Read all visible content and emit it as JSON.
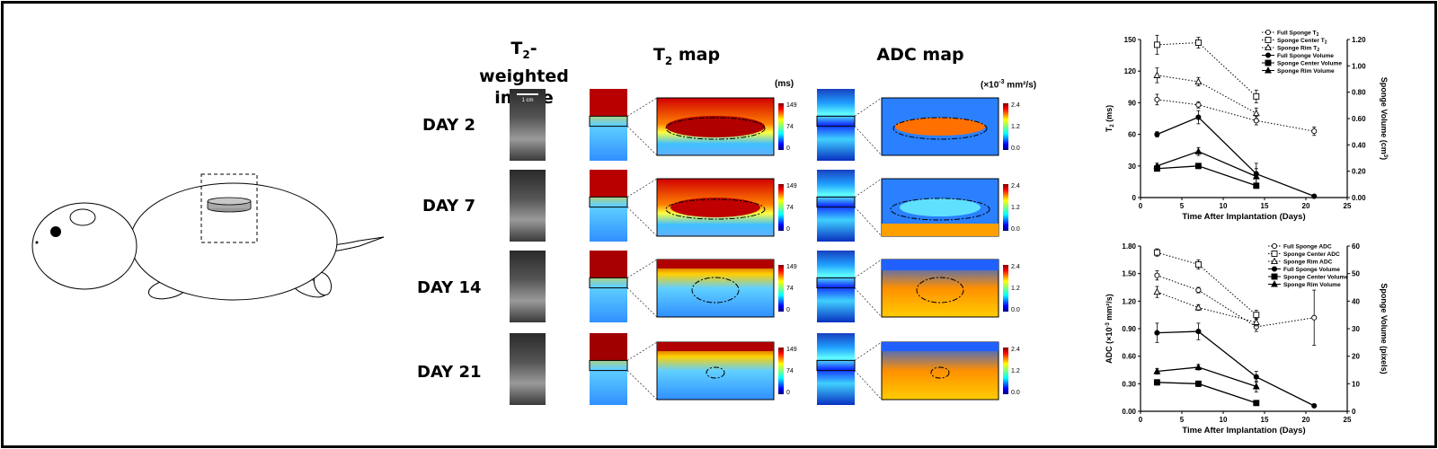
{
  "headers": {
    "t2w_prefix": "T",
    "t2w_sub": "2",
    "t2w_line1_rest": "-weighted",
    "t2w_line2": "image",
    "t2map_prefix": "T",
    "t2map_sub": "2",
    "t2map_rest": " map",
    "adc": "ADC map"
  },
  "scale_bar_label": "1 cm",
  "t2_unit": "(ms)",
  "adc_unit_prefix": "(×10",
  "adc_unit_sup": "-3",
  "adc_unit_rest": " mm²/s)",
  "t2_colorbar_ticks": [
    "149",
    "74",
    "0"
  ],
  "adc_colorbar_ticks": [
    "2.4",
    "1.2",
    "0.0"
  ],
  "days": [
    "DAY 2",
    "DAY 7",
    "DAY 14",
    "DAY 21"
  ],
  "colors": {
    "jet": [
      "#00007f",
      "#0000ff",
      "#007fff",
      "#00ffff",
      "#7fff7f",
      "#ffff00",
      "#ff7f00",
      "#ff0000",
      "#7f0000"
    ]
  },
  "chart_data": [
    {
      "type": "line",
      "title": "",
      "xlabel": "Time After Implantation (Days)",
      "ylabel_prefix": "T",
      "ylabel_sub": "2",
      "ylabel_rest": " (ms)",
      "y2label_prefix": "Sponge Volume (cm",
      "y2label_sup": "3",
      "y2label_rest": ")",
      "xlim": [
        0,
        25
      ],
      "ylim": [
        0,
        150
      ],
      "y2lim": [
        0,
        1.2
      ],
      "xticks": [
        "0",
        "5",
        "10",
        "15",
        "20",
        "25"
      ],
      "yticks": [
        "0",
        "30",
        "60",
        "90",
        "120",
        "150"
      ],
      "y2ticks": [
        "0.00",
        "0.20",
        "0.40",
        "0.60",
        "0.80",
        "1.00",
        "1.20"
      ],
      "legend_position": "top-right",
      "series": [
        {
          "name_prefix": "Full Sponge T",
          "name_sub": "2",
          "axis": "left",
          "style": "dotted",
          "marker": "circle-open",
          "x": [
            2,
            7,
            14,
            21
          ],
          "values": [
            93,
            88,
            73,
            63
          ],
          "err": [
            5,
            3,
            4,
            4
          ]
        },
        {
          "name_prefix": "Sponge Center T",
          "name_sub": "2",
          "axis": "left",
          "style": "dotted",
          "marker": "square-open",
          "x": [
            2,
            7,
            14
          ],
          "values": [
            145,
            147,
            96
          ],
          "err": [
            9,
            5,
            6
          ]
        },
        {
          "name_prefix": "Sponge Rim T",
          "name_sub": "2",
          "axis": "left",
          "style": "dotted",
          "marker": "triangle-open",
          "x": [
            2,
            7,
            14
          ],
          "values": [
            116,
            110,
            80
          ],
          "err": [
            7,
            4,
            5
          ]
        },
        {
          "name_prefix": "Full Sponge Volume",
          "name_sub": "",
          "axis": "right",
          "style": "solid",
          "marker": "circle-filled",
          "x": [
            2,
            7,
            14,
            21
          ],
          "values": [
            0.48,
            0.61,
            0.18,
            0.01
          ],
          "err": [
            0.02,
            0.05,
            0.08,
            0.0
          ]
        },
        {
          "name_prefix": "Sponge Center Volume",
          "name_sub": "",
          "axis": "right",
          "style": "solid",
          "marker": "square-filled",
          "x": [
            2,
            7,
            14
          ],
          "values": [
            0.22,
            0.24,
            0.09
          ],
          "err": [
            0.01,
            0.02,
            0.02
          ]
        },
        {
          "name_prefix": "Sponge Rim Volume",
          "name_sub": "",
          "axis": "right",
          "style": "solid",
          "marker": "triangle-filled",
          "x": [
            2,
            7,
            14
          ],
          "values": [
            0.24,
            0.35,
            0.16
          ],
          "err": [
            0.02,
            0.03,
            0.06
          ]
        }
      ]
    },
    {
      "type": "line",
      "title": "",
      "xlabel": "Time After Implantation (Days)",
      "ylabel_prefix": "ADC (×10",
      "ylabel_sup": "-3",
      "ylabel_rest": " mm²/s)",
      "y2label_prefix": "Sponge Volume (pixels)",
      "y2label_sup": "",
      "y2label_rest": "",
      "xlim": [
        0,
        25
      ],
      "ylim": [
        0,
        1.8
      ],
      "y2lim": [
        0,
        60
      ],
      "xticks": [
        "0",
        "5",
        "10",
        "15",
        "20",
        "25"
      ],
      "yticks": [
        "0.00",
        "0.30",
        "0.60",
        "0.90",
        "1.20",
        "1.50",
        "1.80"
      ],
      "y2ticks": [
        "0",
        "10",
        "20",
        "30",
        "40",
        "50",
        "60"
      ],
      "legend_position": "top-right",
      "series": [
        {
          "name_prefix": "Full Sponge ADC",
          "name_sub": "",
          "axis": "left",
          "style": "dotted",
          "marker": "circle-open",
          "x": [
            2,
            7,
            14,
            21
          ],
          "values": [
            1.48,
            1.32,
            0.92,
            1.02
          ],
          "err": [
            0.05,
            0.03,
            0.05,
            0.3
          ]
        },
        {
          "name_prefix": "Sponge Center ADC",
          "name_sub": "",
          "axis": "left",
          "style": "dotted",
          "marker": "square-open",
          "x": [
            2,
            7,
            14
          ],
          "values": [
            1.73,
            1.6,
            1.05
          ],
          "err": [
            0.04,
            0.05,
            0.05
          ]
        },
        {
          "name_prefix": "Sponge Rim ADC",
          "name_sub": "",
          "axis": "left",
          "style": "dotted",
          "marker": "triangle-open",
          "x": [
            2,
            7,
            14
          ],
          "values": [
            1.3,
            1.13,
            0.97
          ],
          "err": [
            0.06,
            0.03,
            0.04
          ]
        },
        {
          "name_prefix": "Full Sponge Volume",
          "name_sub": "",
          "axis": "right",
          "style": "solid",
          "marker": "circle-filled",
          "x": [
            2,
            7,
            14,
            21
          ],
          "values": [
            28.5,
            29,
            12.5,
            2
          ],
          "err": [
            3.5,
            3,
            2,
            0
          ]
        },
        {
          "name_prefix": "Sponge Center Volume",
          "name_sub": "",
          "axis": "right",
          "style": "solid",
          "marker": "square-filled",
          "x": [
            2,
            7,
            14
          ],
          "values": [
            10.5,
            10,
            3
          ],
          "err": [
            1,
            1,
            0
          ]
        },
        {
          "name_prefix": "Sponge Rim Volume",
          "name_sub": "",
          "axis": "right",
          "style": "solid",
          "marker": "triangle-filled",
          "x": [
            2,
            7,
            14
          ],
          "values": [
            14.5,
            16,
            9
          ],
          "err": [
            1,
            1,
            2
          ]
        }
      ]
    }
  ]
}
